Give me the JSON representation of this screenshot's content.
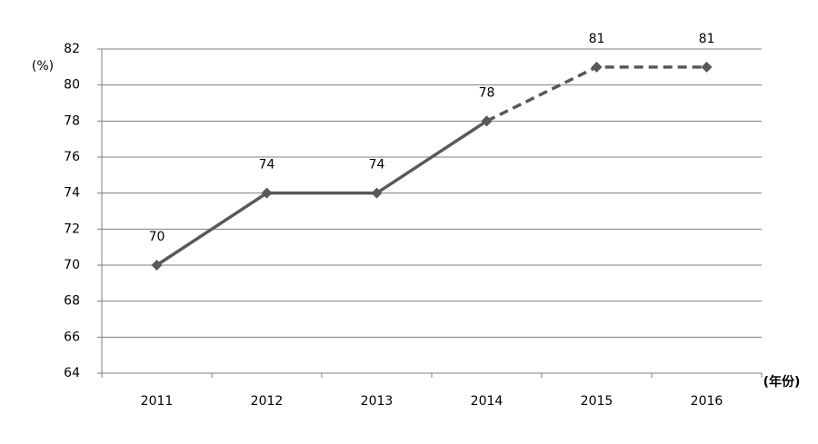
{
  "chart_data": {
    "type": "line",
    "y_label": "(%)",
    "x_label": "(年份)",
    "categories": [
      "2011",
      "2012",
      "2013",
      "2014",
      "2015",
      "2016"
    ],
    "series": [
      {
        "color": "#595959",
        "dash": false,
        "values": [
          70,
          74,
          74,
          78,
          null,
          null
        ]
      },
      {
        "color": "#595959",
        "dash": true,
        "values": [
          null,
          null,
          null,
          78,
          81,
          81
        ]
      }
    ],
    "ylim": [
      64,
      82
    ],
    "yticks": [
      64,
      66,
      68,
      70,
      72,
      74,
      76,
      78,
      80,
      82
    ],
    "grid": true
  }
}
